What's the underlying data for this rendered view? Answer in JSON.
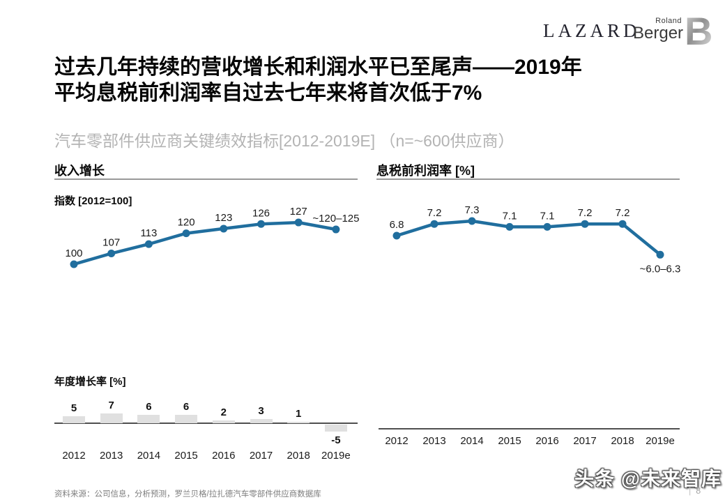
{
  "header": {
    "lazard_logo": "LAZARD",
    "roland": "Roland",
    "berger": "Berger",
    "b_letter": "B"
  },
  "title": {
    "line1": "过去几年持续的营收增长和利润水平已至尾声——2019年",
    "line2": "平均息税前利润率自过去七年来将首次低于7%"
  },
  "subtitle": "汽车零部件供应商关键绩效指标[2012-2019E] （n=~600供应商）",
  "footer": {
    "source": "资料来源：公司信息，分析预测，罗兰贝格/拉扎德汽车零部件供应商数据库",
    "watermark": "头条 @未来智库",
    "page_sep": "|",
    "page_number": "8"
  },
  "colors": {
    "line": "#206e9e",
    "bar": "#e0e0e0",
    "rule": "#999999",
    "axis": "#4f4f4f"
  },
  "chart_data": [
    {
      "id": "revenue-index",
      "type": "line",
      "title": "收入增长",
      "sub_label": "指数 [2012=100]",
      "categories": [
        "2012",
        "2013",
        "2014",
        "2015",
        "2016",
        "2017",
        "2018",
        "2019e"
      ],
      "values": [
        100,
        107,
        113,
        120,
        123,
        126,
        127,
        122.5
      ],
      "labels": [
        "100",
        "107",
        "113",
        "120",
        "123",
        "126",
        "127",
        "~120–125"
      ],
      "label_positions": [
        "above",
        "above",
        "above",
        "above",
        "above",
        "above",
        "above",
        "above"
      ],
      "ylim": [
        95,
        135
      ],
      "grid": false,
      "legend": "none",
      "x_axis_shown": false
    },
    {
      "id": "annual-growth",
      "type": "bar",
      "title": "年度增长率 [%]",
      "categories": [
        "2012",
        "2013",
        "2014",
        "2015",
        "2016",
        "2017",
        "2018",
        "2019e"
      ],
      "values": [
        5,
        7,
        6,
        6,
        2,
        3,
        1,
        -5
      ],
      "labels": [
        "5",
        "7",
        "6",
        "6",
        "2",
        "3",
        "1",
        "-5"
      ],
      "ylim": [
        -6,
        8
      ],
      "grid": false,
      "legend": "none",
      "x_axis_shown": true
    },
    {
      "id": "ebit-margin",
      "type": "line",
      "title": "息税前利润率 [%]",
      "categories": [
        "2012",
        "2013",
        "2014",
        "2015",
        "2016",
        "2017",
        "2018",
        "2019e"
      ],
      "values": [
        6.8,
        7.2,
        7.3,
        7.1,
        7.1,
        7.2,
        7.2,
        6.15
      ],
      "labels": [
        "6.8",
        "7.2",
        "7.3",
        "7.1",
        "7.1",
        "7.2",
        "7.2",
        "~6.0–6.3"
      ],
      "label_positions": [
        "above",
        "above",
        "above",
        "above",
        "above",
        "above",
        "above",
        "below"
      ],
      "ylim": [
        5.5,
        8
      ],
      "grid": false,
      "legend": "none",
      "x_axis_shown": true
    }
  ]
}
